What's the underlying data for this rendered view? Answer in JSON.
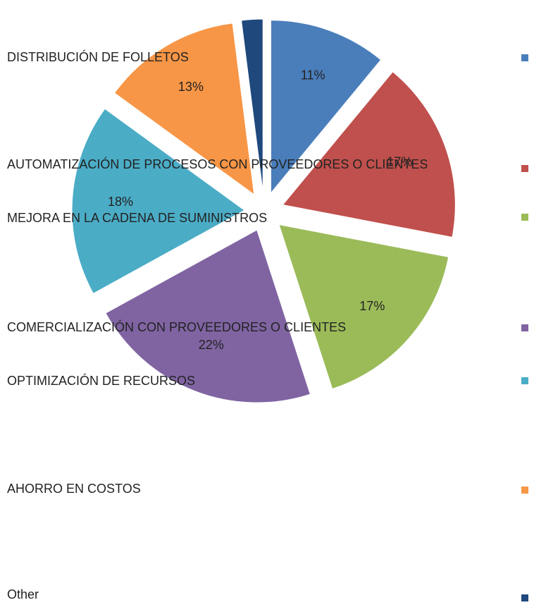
{
  "chart_data": {
    "type": "pie",
    "categories": [
      "DISTRIBUCIÓN DE FOLLETOS",
      "AUTOMATIZACIÓN DE PROCESOS CON PROVEEDORES O CLIENTES",
      "MEJORA EN LA CADENA DE SUMINISTROS",
      "COMERCIALIZACIÓN CON PROVEEDORES O CLIENTES",
      "OPTIMIZACIÓN DE RECURSOS",
      "AHORRO EN COSTOS",
      "Other"
    ],
    "values": [
      11,
      17,
      17,
      22,
      18,
      13,
      2
    ],
    "value_labels": [
      "11%",
      "17%",
      "17%",
      "22%",
      "18%",
      "13%",
      null
    ],
    "colors": [
      "#4a7ebb",
      "#c0504d",
      "#9bbb59",
      "#8064a2",
      "#4bacc6",
      "#f79646",
      "#1f497d"
    ],
    "exploded": true,
    "legend": "right"
  }
}
